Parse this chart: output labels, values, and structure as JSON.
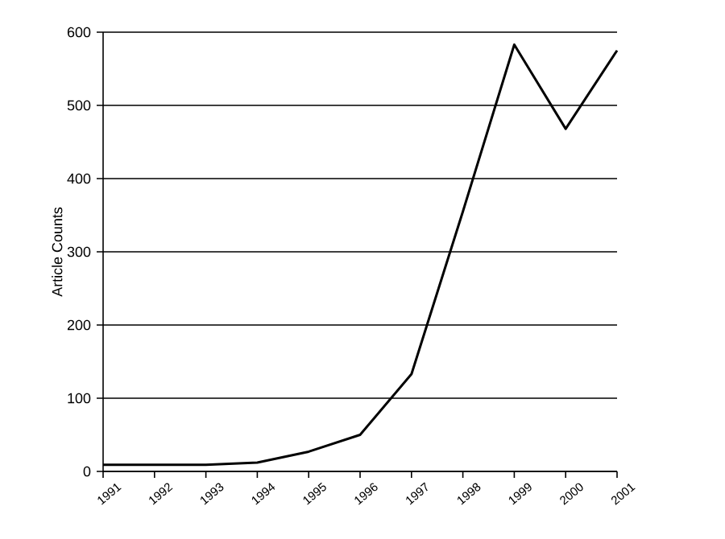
{
  "chart_data": {
    "type": "line",
    "ylabel": "Article Counts",
    "categories": [
      "1991",
      "1992",
      "1993",
      "1994",
      "1995",
      "1996",
      "1997",
      "1998",
      "1999",
      "2000",
      "2001"
    ],
    "series": [
      {
        "color": "#000000",
        "values": [
          9,
          9,
          9,
          12,
          27,
          50,
          133,
          355,
          583,
          468,
          575
        ]
      }
    ],
    "ylim": [
      0,
      600
    ],
    "yticks": [
      0,
      100,
      200,
      300,
      400,
      500,
      600
    ],
    "grid": "y",
    "marker": "none",
    "line_style": "solid"
  }
}
